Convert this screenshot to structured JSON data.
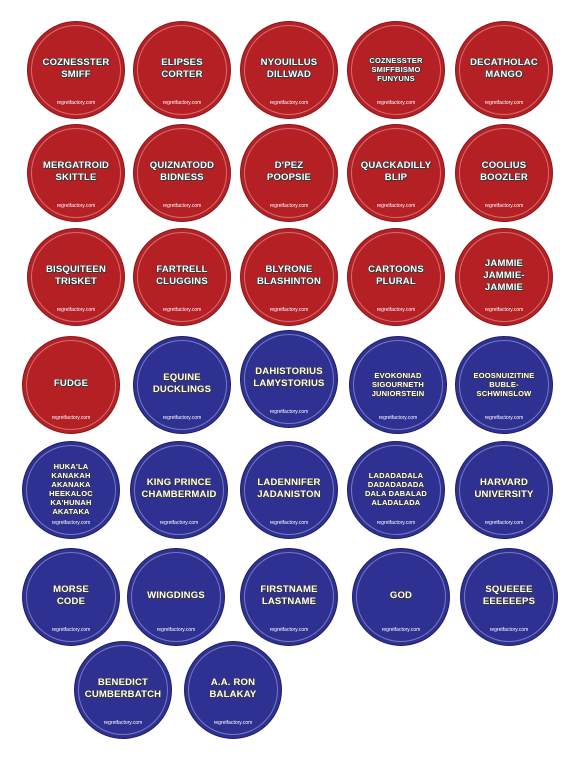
{
  "badges": [
    {
      "name": "COZNESSTER\nSMIFF",
      "color": "#b52025",
      "site": "regretfactory.com"
    },
    {
      "name": "ELIPSES\nCORTER",
      "color": "#b52025",
      "site": "regretfactory.com"
    },
    {
      "name": "NYOUILLUS\nDILLWAD",
      "color": "#b52025",
      "site": "regretfactory.com"
    },
    {
      "name": "COZNESSTER\nSMIFFBISMO\nFUNYUNS",
      "color": "#b52025",
      "site": "regretfactory.com"
    },
    {
      "name": "DECATHOLAC\nMANGO",
      "color": "#b52025",
      "site": "regretfactory.com"
    },
    {
      "name": "MERGATROID\nSKITTLE",
      "color": "#b52025",
      "site": "regretfactory.com"
    },
    {
      "name": "QUIZNATODD\nBIDNESS",
      "color": "#b52025",
      "site": "regretfactory.com"
    },
    {
      "name": "D'PEZ\nPOOPSIE",
      "color": "#b52025",
      "site": "regretfactory.com"
    },
    {
      "name": "QUACKADILLY\nBLIP",
      "color": "#b52025",
      "site": "regretfactory.com"
    },
    {
      "name": "COOLIUS\nBOOZLER",
      "color": "#b52025",
      "site": "regretfactory.com"
    },
    {
      "name": "BISQUITEEN\nTRISKET",
      "color": "#b52025",
      "site": "regretfactory.com"
    },
    {
      "name": "FARTRELL\nCLUGGINS",
      "color": "#b52025",
      "site": "regretfactory.com"
    },
    {
      "name": "BLYRONE\nBLASHINTON",
      "color": "#b52025",
      "site": "regretfactory.com"
    },
    {
      "name": "CARTOONS\nPLURAL",
      "color": "#b52025",
      "site": "regretfactory.com"
    },
    {
      "name": "JAMMIE\nJAMMIE-\nJAMMIE",
      "color": "#b52025",
      "site": "regretfactory.com"
    },
    {
      "name": "FUDGE",
      "color": "#b52025",
      "site": "regretfactory.com"
    },
    {
      "name": "EQUINE\nDUCKLINGS",
      "color": "#2e3192",
      "site": "regretfactory.com"
    },
    {
      "name": "DAHISTORIUS\nLAMYSTORIUS",
      "color": "#2e3192",
      "site": "regretfactory.com"
    },
    {
      "name": "EVOKONIAD\nSIGOURNETH\nJUNIORSTEIN",
      "color": "#2e3192",
      "site": "regretfactory.com"
    },
    {
      "name": "EOOSNUIZITINE\nBUBLE-\nSCHWINSLOW",
      "color": "#2e3192",
      "site": "regretfactory.com"
    },
    {
      "name": "HUKA'LA\nKANAKAH\nAKANAKA\nHEEKALOC\nKA'HUNAH\nAKATAKA",
      "color": "#2e3192",
      "site": "regretfactory.com"
    },
    {
      "name": "KING PRINCE\nCHAMBERMAID",
      "color": "#2e3192",
      "site": "regretfactory.com"
    },
    {
      "name": "LADENNIFER\nJADANISTON",
      "color": "#2e3192",
      "site": "regretfactory.com"
    },
    {
      "name": "LADADADALA\nDADADADADA\nDALA DABALAD\nALADALADA",
      "color": "#2e3192",
      "site": "regretfactory.com"
    },
    {
      "name": "HARVARD\nUNIVERSITY",
      "color": "#2e3192",
      "site": "regretfactory.com"
    },
    {
      "name": "MORSE\nCODE",
      "color": "#2e3192",
      "site": "regretfactory.com"
    },
    {
      "name": "WINGDINGS",
      "color": "#2e3192",
      "site": "regretfactory.com"
    },
    {
      "name": "FIRSTNAME\nLASTNAME",
      "color": "#2e3192",
      "site": "regretfactory.com"
    },
    {
      "name": "GOD",
      "color": "#2e3192",
      "site": "regretfactory.com"
    },
    {
      "name": "SQUEEEE\nEEEEEEPS",
      "color": "#2e3192",
      "site": "regretfactory.com"
    },
    {
      "name": "BENEDICT\nCUMBERBATCH",
      "color": "#2e3192",
      "site": "regretfactory.com"
    },
    {
      "name": "A.A. RON\nBALAKAY",
      "color": "#2e3192",
      "site": "regretfactory.com"
    }
  ]
}
